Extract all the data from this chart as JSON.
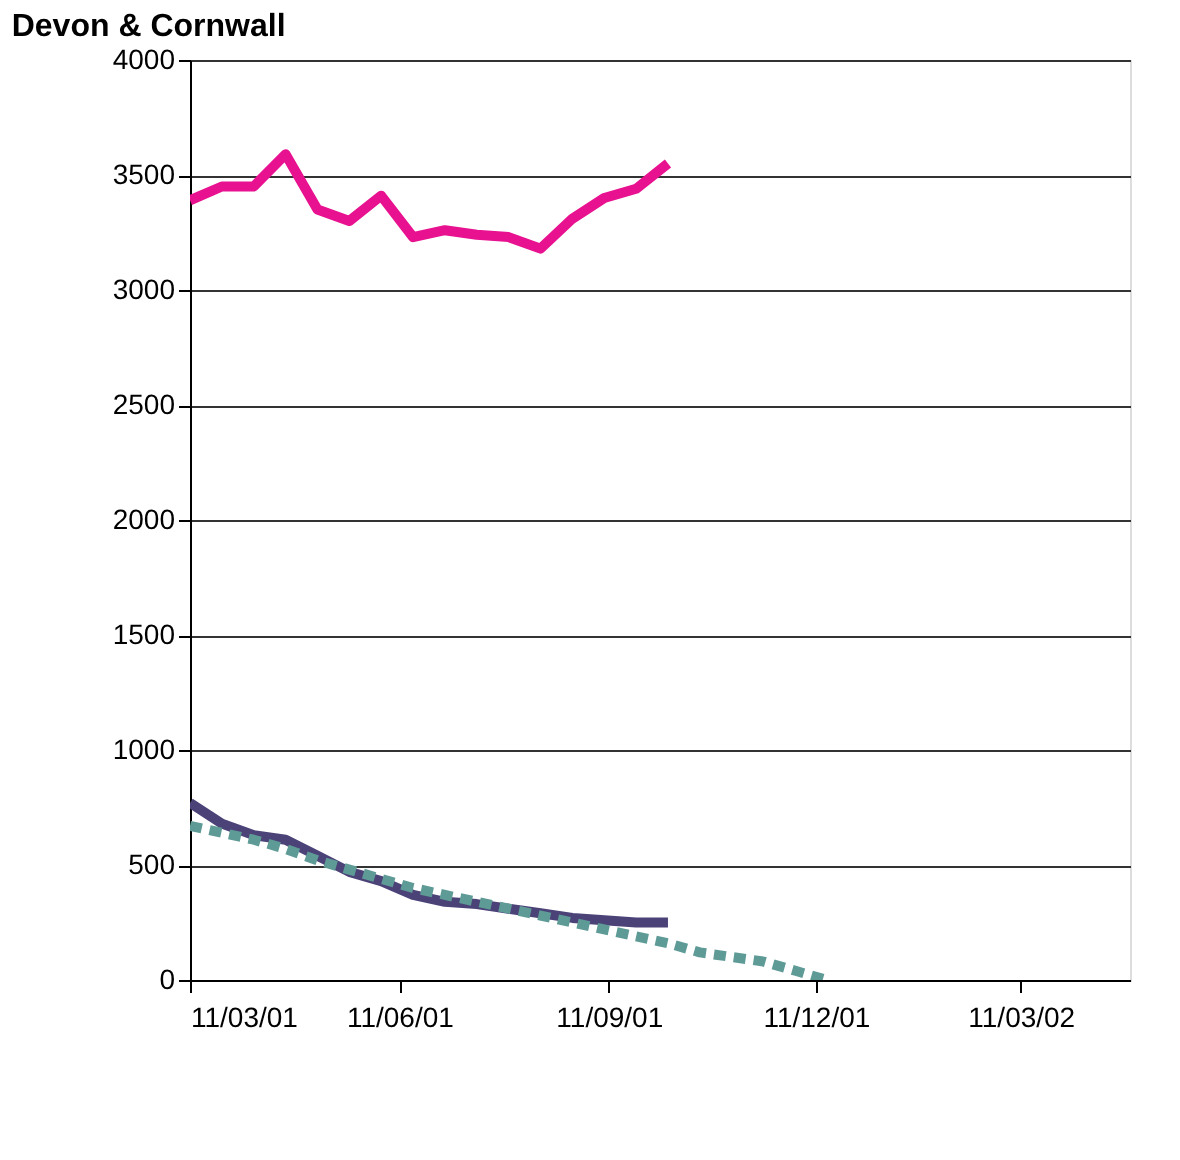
{
  "chart_data": {
    "type": "line",
    "title": "Devon & Cornwall",
    "x": [
      "2001-03-11",
      "2001-03-25",
      "2001-04-08",
      "2001-04-22",
      "2001-05-06",
      "2001-05-20",
      "2001-06-03",
      "2001-06-17",
      "2001-07-01",
      "2001-07-15",
      "2001-07-29",
      "2001-08-12",
      "2001-08-26",
      "2001-09-09",
      "2001-09-23",
      "2001-10-07"
    ],
    "series": [
      {
        "color": "#e8118f",
        "line_style": "solid",
        "values": [
          3390,
          3450,
          3450,
          3590,
          3350,
          3300,
          3410,
          3230,
          3260,
          3240,
          3230,
          3180,
          3310,
          3400,
          3440,
          3550
        ]
      },
      {
        "color": "#4b4278",
        "line_style": "solid",
        "values": [
          770,
          680,
          630,
          610,
          540,
          470,
          430,
          370,
          340,
          330,
          310,
          290,
          270,
          260,
          250,
          250
        ]
      },
      {
        "color": "#5f9b96",
        "line_style": "dashed",
        "x": [
          "2001-03-11",
          "2001-03-25",
          "2001-04-08",
          "2001-04-22",
          "2001-05-06",
          "2001-05-20",
          "2001-06-03",
          "2001-06-17",
          "2001-07-01",
          "2001-07-15",
          "2001-07-29",
          "2001-08-12",
          "2001-08-26",
          "2001-09-09",
          "2001-09-23",
          "2001-10-07",
          "2001-10-21",
          "2001-11-04",
          "2001-11-18",
          "2001-12-02",
          "2001-12-16"
        ],
        "values": [
          670,
          640,
          610,
          570,
          520,
          480,
          440,
          400,
          370,
          340,
          310,
          280,
          250,
          220,
          190,
          160,
          120,
          100,
          80,
          40,
          0
        ]
      }
    ],
    "xlim": [
      "2001-03-11",
      "2002-04-28"
    ],
    "xticks": [
      {
        "value": "2001-03-11",
        "label": "11/03/01"
      },
      {
        "value": "2001-06-11",
        "label": "11/06/01"
      },
      {
        "value": "2001-09-11",
        "label": "11/09/01"
      },
      {
        "value": "2001-12-11",
        "label": "11/12/01"
      },
      {
        "value": "2002-03-11",
        "label": "11/03/02"
      }
    ],
    "ylim": [
      0,
      4000
    ],
    "yticks": [
      0,
      500,
      1000,
      1500,
      2000,
      2500,
      3000,
      3500,
      4000
    ],
    "grid": "y",
    "legend": false
  }
}
